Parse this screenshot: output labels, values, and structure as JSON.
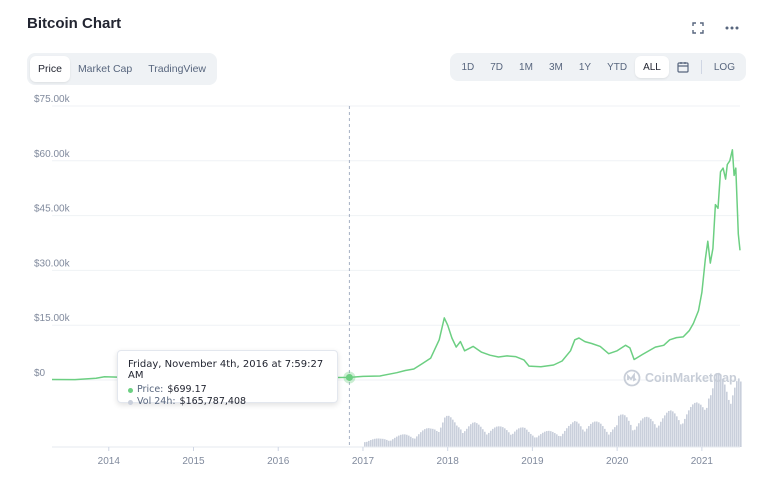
{
  "header": {
    "title": "Bitcoin Chart"
  },
  "tabs": [
    {
      "label": "Price",
      "active": true
    },
    {
      "label": "Market Cap",
      "active": false
    },
    {
      "label": "TradingView",
      "active": false
    }
  ],
  "ranges": [
    {
      "label": "1D",
      "active": false
    },
    {
      "label": "7D",
      "active": false
    },
    {
      "label": "1M",
      "active": false
    },
    {
      "label": "3M",
      "active": false
    },
    {
      "label": "1Y",
      "active": false
    },
    {
      "label": "YTD",
      "active": false
    },
    {
      "label": "ALL",
      "active": true
    }
  ],
  "log_label": "LOG",
  "icons": {
    "fullscreen": "fullscreen-icon",
    "more": "more-icon",
    "calendar": "calendar-icon"
  },
  "tooltip": {
    "date": "Friday, November 4th, 2016 at 7:59:27 AM",
    "price_label": "Price:",
    "price_value": "$699.17",
    "vol_label": "Vol 24h:",
    "vol_value": "$165,787,408"
  },
  "watermark": "CoinMarketCap",
  "colors": {
    "line": "#6ccf82",
    "volume": "#c9cfdb",
    "crosshair": "#a6b0c3",
    "grid": "#eff2f5",
    "axis_text": "#808a9d"
  },
  "chart_data": {
    "type": "line",
    "xlabel": "",
    "ylabel": "",
    "ylim": [
      0,
      75000
    ],
    "y_ticks": [
      "$0",
      "$15.00k",
      "$30.00k",
      "$45.00k",
      "$60.00k",
      "$75.00k"
    ],
    "y_tick_values": [
      0,
      15000,
      30000,
      45000,
      60000,
      75000
    ],
    "x_ticks": [
      "2014",
      "2015",
      "2016",
      "2017",
      "2018",
      "2019",
      "2020",
      "2021"
    ],
    "x_tick_values": [
      2014,
      2015,
      2016,
      2017,
      2018,
      2019,
      2020,
      2021
    ],
    "xlim": [
      2013.33,
      2021.45
    ],
    "grid": true,
    "series": [
      {
        "x": [
          2013.33,
          2013.6,
          2013.85,
          2013.95,
          2014.1,
          2014.4,
          2014.8,
          2015.0,
          2015.5,
          2015.9,
          2016.3,
          2016.5,
          2016.84,
          2017.0,
          2017.2,
          2017.4,
          2017.5,
          2017.6,
          2017.7,
          2017.8,
          2017.9,
          2017.96,
          2018.0,
          2018.05,
          2018.1,
          2018.15,
          2018.2,
          2018.3,
          2018.4,
          2018.5,
          2018.6,
          2018.7,
          2018.8,
          2018.9,
          2018.96,
          2019.1,
          2019.25,
          2019.35,
          2019.45,
          2019.5,
          2019.55,
          2019.62,
          2019.7,
          2019.8,
          2019.9,
          2020.0,
          2020.1,
          2020.15,
          2020.2,
          2020.3,
          2020.45,
          2020.55,
          2020.62,
          2020.7,
          2020.78,
          2020.85,
          2020.9,
          2020.96,
          2021.0,
          2021.04,
          2021.07,
          2021.1,
          2021.13,
          2021.16,
          2021.19,
          2021.22,
          2021.25,
          2021.28,
          2021.3,
          2021.33,
          2021.36,
          2021.38,
          2021.4,
          2021.43,
          2021.45
        ],
        "y": [
          130,
          120,
          500,
          900,
          800,
          580,
          340,
          300,
          250,
          400,
          430,
          650,
          699,
          990,
          1100,
          2000,
          2600,
          3000,
          4500,
          6000,
          11000,
          17000,
          15000,
          11500,
          9000,
          10500,
          8000,
          9200,
          7600,
          6800,
          6300,
          6600,
          6400,
          5500,
          3800,
          3600,
          4100,
          5200,
          8000,
          11000,
          11500,
          10500,
          10000,
          9200,
          7200,
          8000,
          9500,
          8800,
          5600,
          7000,
          9000,
          9500,
          11000,
          11600,
          11800,
          13500,
          15500,
          19000,
          24000,
          33000,
          38000,
          32000,
          36000,
          48000,
          47000,
          57000,
          58000,
          55000,
          59000,
          60000,
          63000,
          56000,
          58000,
          40000,
          35500
        ]
      }
    ],
    "tooltip_point": {
      "x": 2016.84,
      "y": 699.17
    }
  }
}
